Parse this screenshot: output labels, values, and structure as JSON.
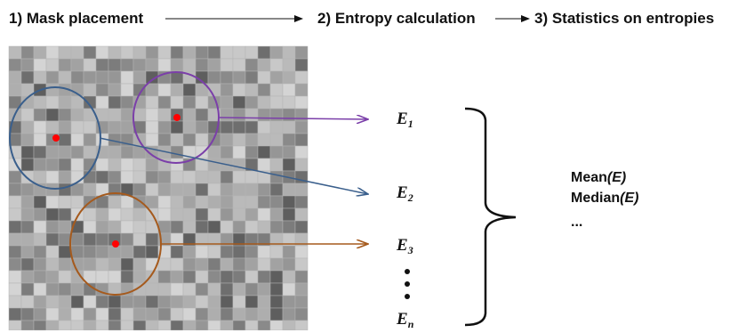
{
  "steps": {
    "step1": "1) Mask placement",
    "step2": "2) Entropy calculation",
    "step3": "3) Statistics on entropies"
  },
  "colors": {
    "mask_purple": "#7b3fa9",
    "mask_blue": "#3a5f8c",
    "mask_orange": "#a55a1d",
    "center_red": "#ff0000",
    "text": "#111111"
  },
  "masks": [
    {
      "name": "purple-mask",
      "color": "#7b3fa9",
      "entropy": "E",
      "subscript": "1"
    },
    {
      "name": "blue-mask",
      "color": "#3a5f8c",
      "entropy": "E",
      "subscript": "2"
    },
    {
      "name": "orange-mask",
      "color": "#a55a1d",
      "entropy": "E",
      "subscript": "3"
    }
  ],
  "entropies": {
    "e1": {
      "symbol": "E",
      "sub": "1"
    },
    "e2": {
      "symbol": "E",
      "sub": "2"
    },
    "e3": {
      "symbol": "E",
      "sub": "3"
    },
    "en": {
      "symbol": "E",
      "sub": "n"
    }
  },
  "statistics": {
    "mean_prefix": "Mean",
    "mean_arg": "(E)",
    "median_prefix": "Median",
    "median_arg": "(E)",
    "ellipsis": "..."
  }
}
